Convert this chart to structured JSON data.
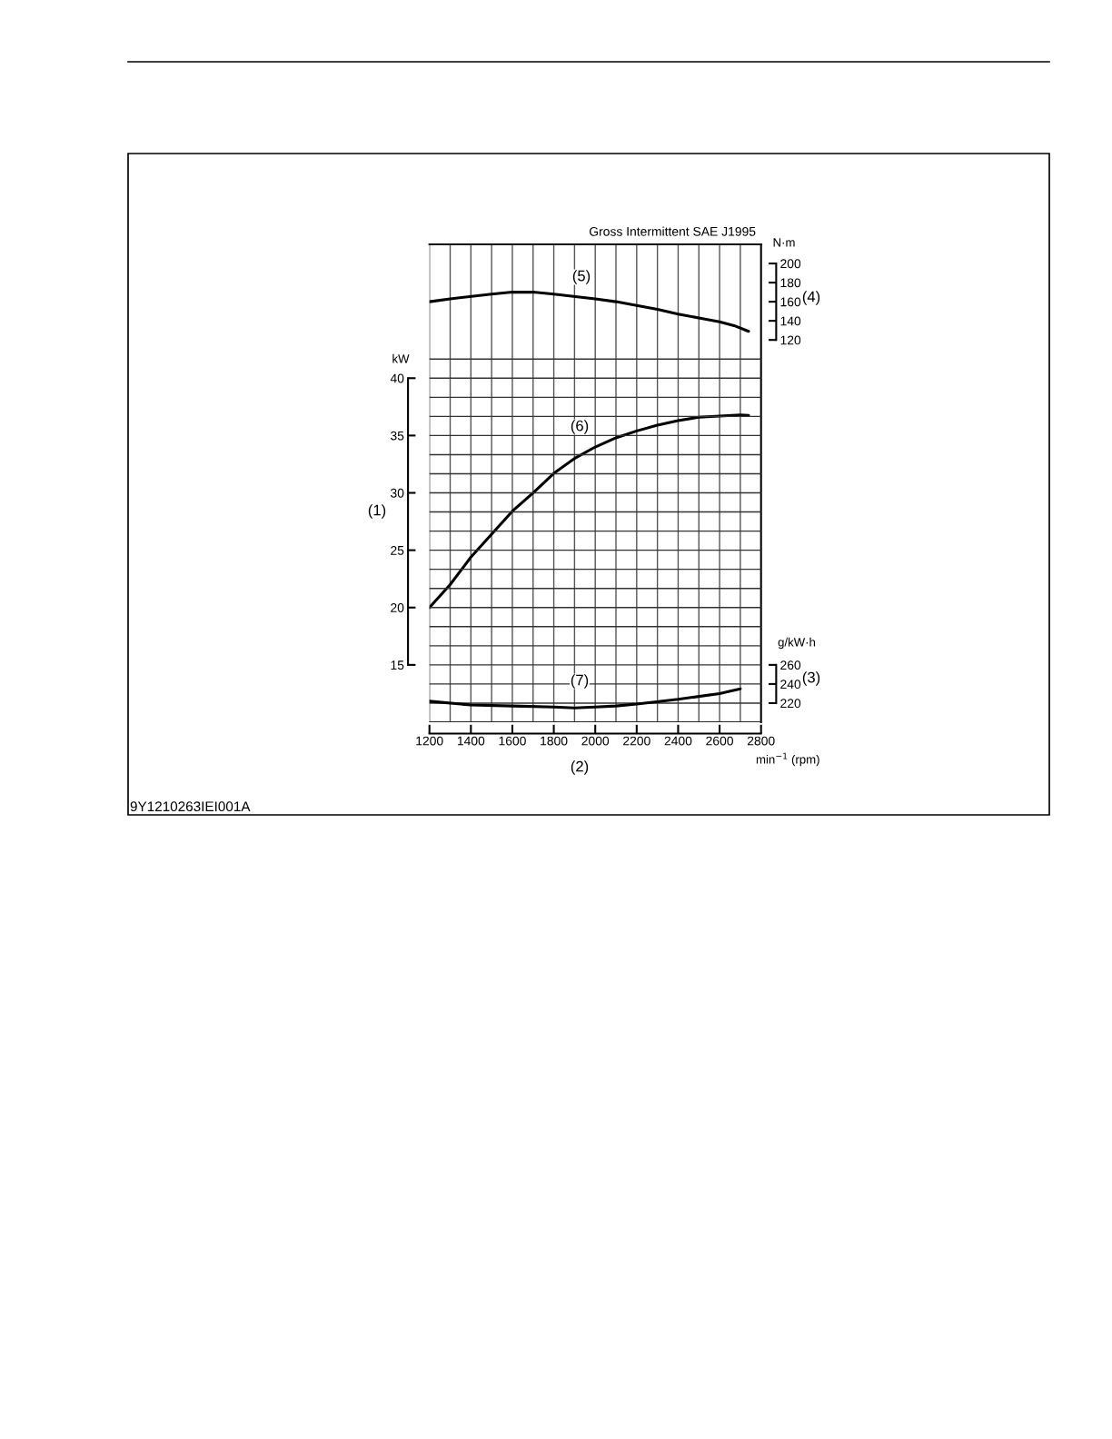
{
  "chart_data": {
    "type": "line",
    "title": "Gross Intermittent SAE J1995",
    "xlabel": "min$^{−1}$ (rpm)",
    "ylabel": "kW",
    "y2label": "N·m",
    "y3label": "g/kW·h",
    "xlim": [
      1200,
      2800
    ],
    "xticks": [
      1200,
      1400,
      1600,
      1800,
      2000,
      2200,
      2400,
      2600,
      2800
    ],
    "ylim": [
      10,
      51.667
    ],
    "yticks": [
      15,
      20,
      25,
      30,
      35,
      40
    ],
    "y2lim": [
      -280,
      220
    ],
    "y2ticks": [
      120,
      140,
      160,
      180,
      200
    ],
    "y3lim": [
      200,
      700
    ],
    "y3ticks": [
      220,
      240,
      260
    ],
    "grid": true,
    "series": [
      {
        "color": "#000000",
        "axis": "y2",
        "x": [
          1200,
          1300,
          1500,
          1600,
          1700,
          1800,
          2000,
          2100,
          2300,
          2400,
          2500,
          2600,
          2670,
          2740
        ],
        "values": [
          160,
          163,
          168,
          170,
          170,
          168,
          163,
          160,
          152,
          147,
          143,
          139,
          135,
          129
        ]
      },
      {
        "color": "#000000",
        "axis": "y",
        "x": [
          1200,
          1300,
          1400,
          1500,
          1600,
          1700,
          1800,
          1900,
          2000,
          2100,
          2200,
          2300,
          2400,
          2500,
          2600,
          2700,
          2740
        ],
        "values": [
          20.0,
          22.0,
          24.4,
          26.4,
          28.4,
          30.0,
          31.7,
          33.0,
          34.0,
          34.8,
          35.4,
          35.9,
          36.3,
          36.6,
          36.7,
          36.8,
          36.75
        ]
      },
      {
        "color": "#000000",
        "axis": "y3",
        "x": [
          1200,
          1400,
          1600,
          1800,
          1900,
          2000,
          2100,
          2200,
          2400,
          2600,
          2700
        ],
        "values": [
          222,
          218,
          217,
          216,
          215,
          216,
          217,
          219,
          224,
          230,
          235
        ]
      }
    ],
    "annotations": [
      "(1)",
      "(2)",
      "(3)",
      "(4)",
      "(5)",
      "(6)",
      "(7)",
      "9Y1210263IEI001A"
    ]
  }
}
